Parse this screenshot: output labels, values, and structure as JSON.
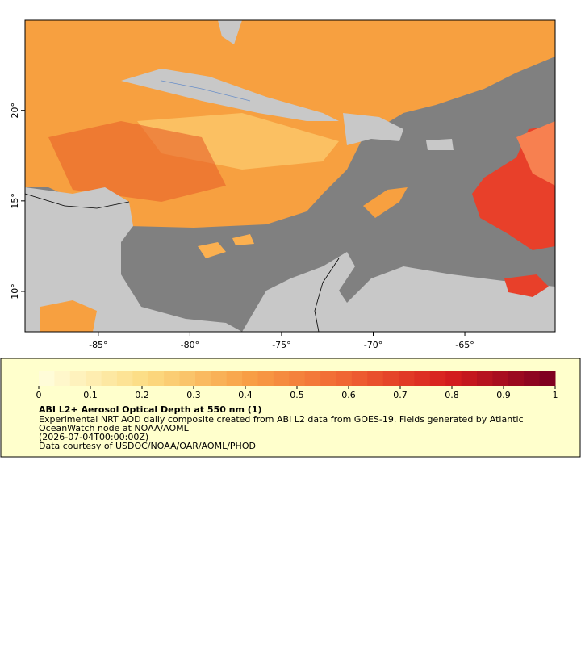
{
  "map": {
    "x_ticks": [
      {
        "value": -85,
        "label": "-85°"
      },
      {
        "value": -80,
        "label": "-80°"
      },
      {
        "value": -75,
        "label": "-75°"
      },
      {
        "value": -70,
        "label": "-70°"
      },
      {
        "value": -65,
        "label": "-65°"
      }
    ],
    "y_ticks": [
      {
        "value": 10,
        "label": "10°"
      },
      {
        "value": 15,
        "label": "15°"
      },
      {
        "value": 20,
        "label": "20°"
      }
    ]
  },
  "legend": {
    "ticks": [
      0,
      0.1,
      0.2,
      0.3,
      0.4,
      0.5,
      0.6,
      0.7,
      0.8,
      0.9,
      1
    ],
    "title": "ABI L2+ Aerosol Optical Depth at 550 nm (1)",
    "lines": [
      "Experimental NRT AOD daily composite created from ABI L2 data from GOES-19. Fields generated by Atlantic",
      "OceanWatch node at NOAA/AOML",
      "(2026-07-04T00:00:00Z)",
      "Data courtesy of USDOC/NOAA/OAR/AOML/PHOD"
    ]
  }
}
